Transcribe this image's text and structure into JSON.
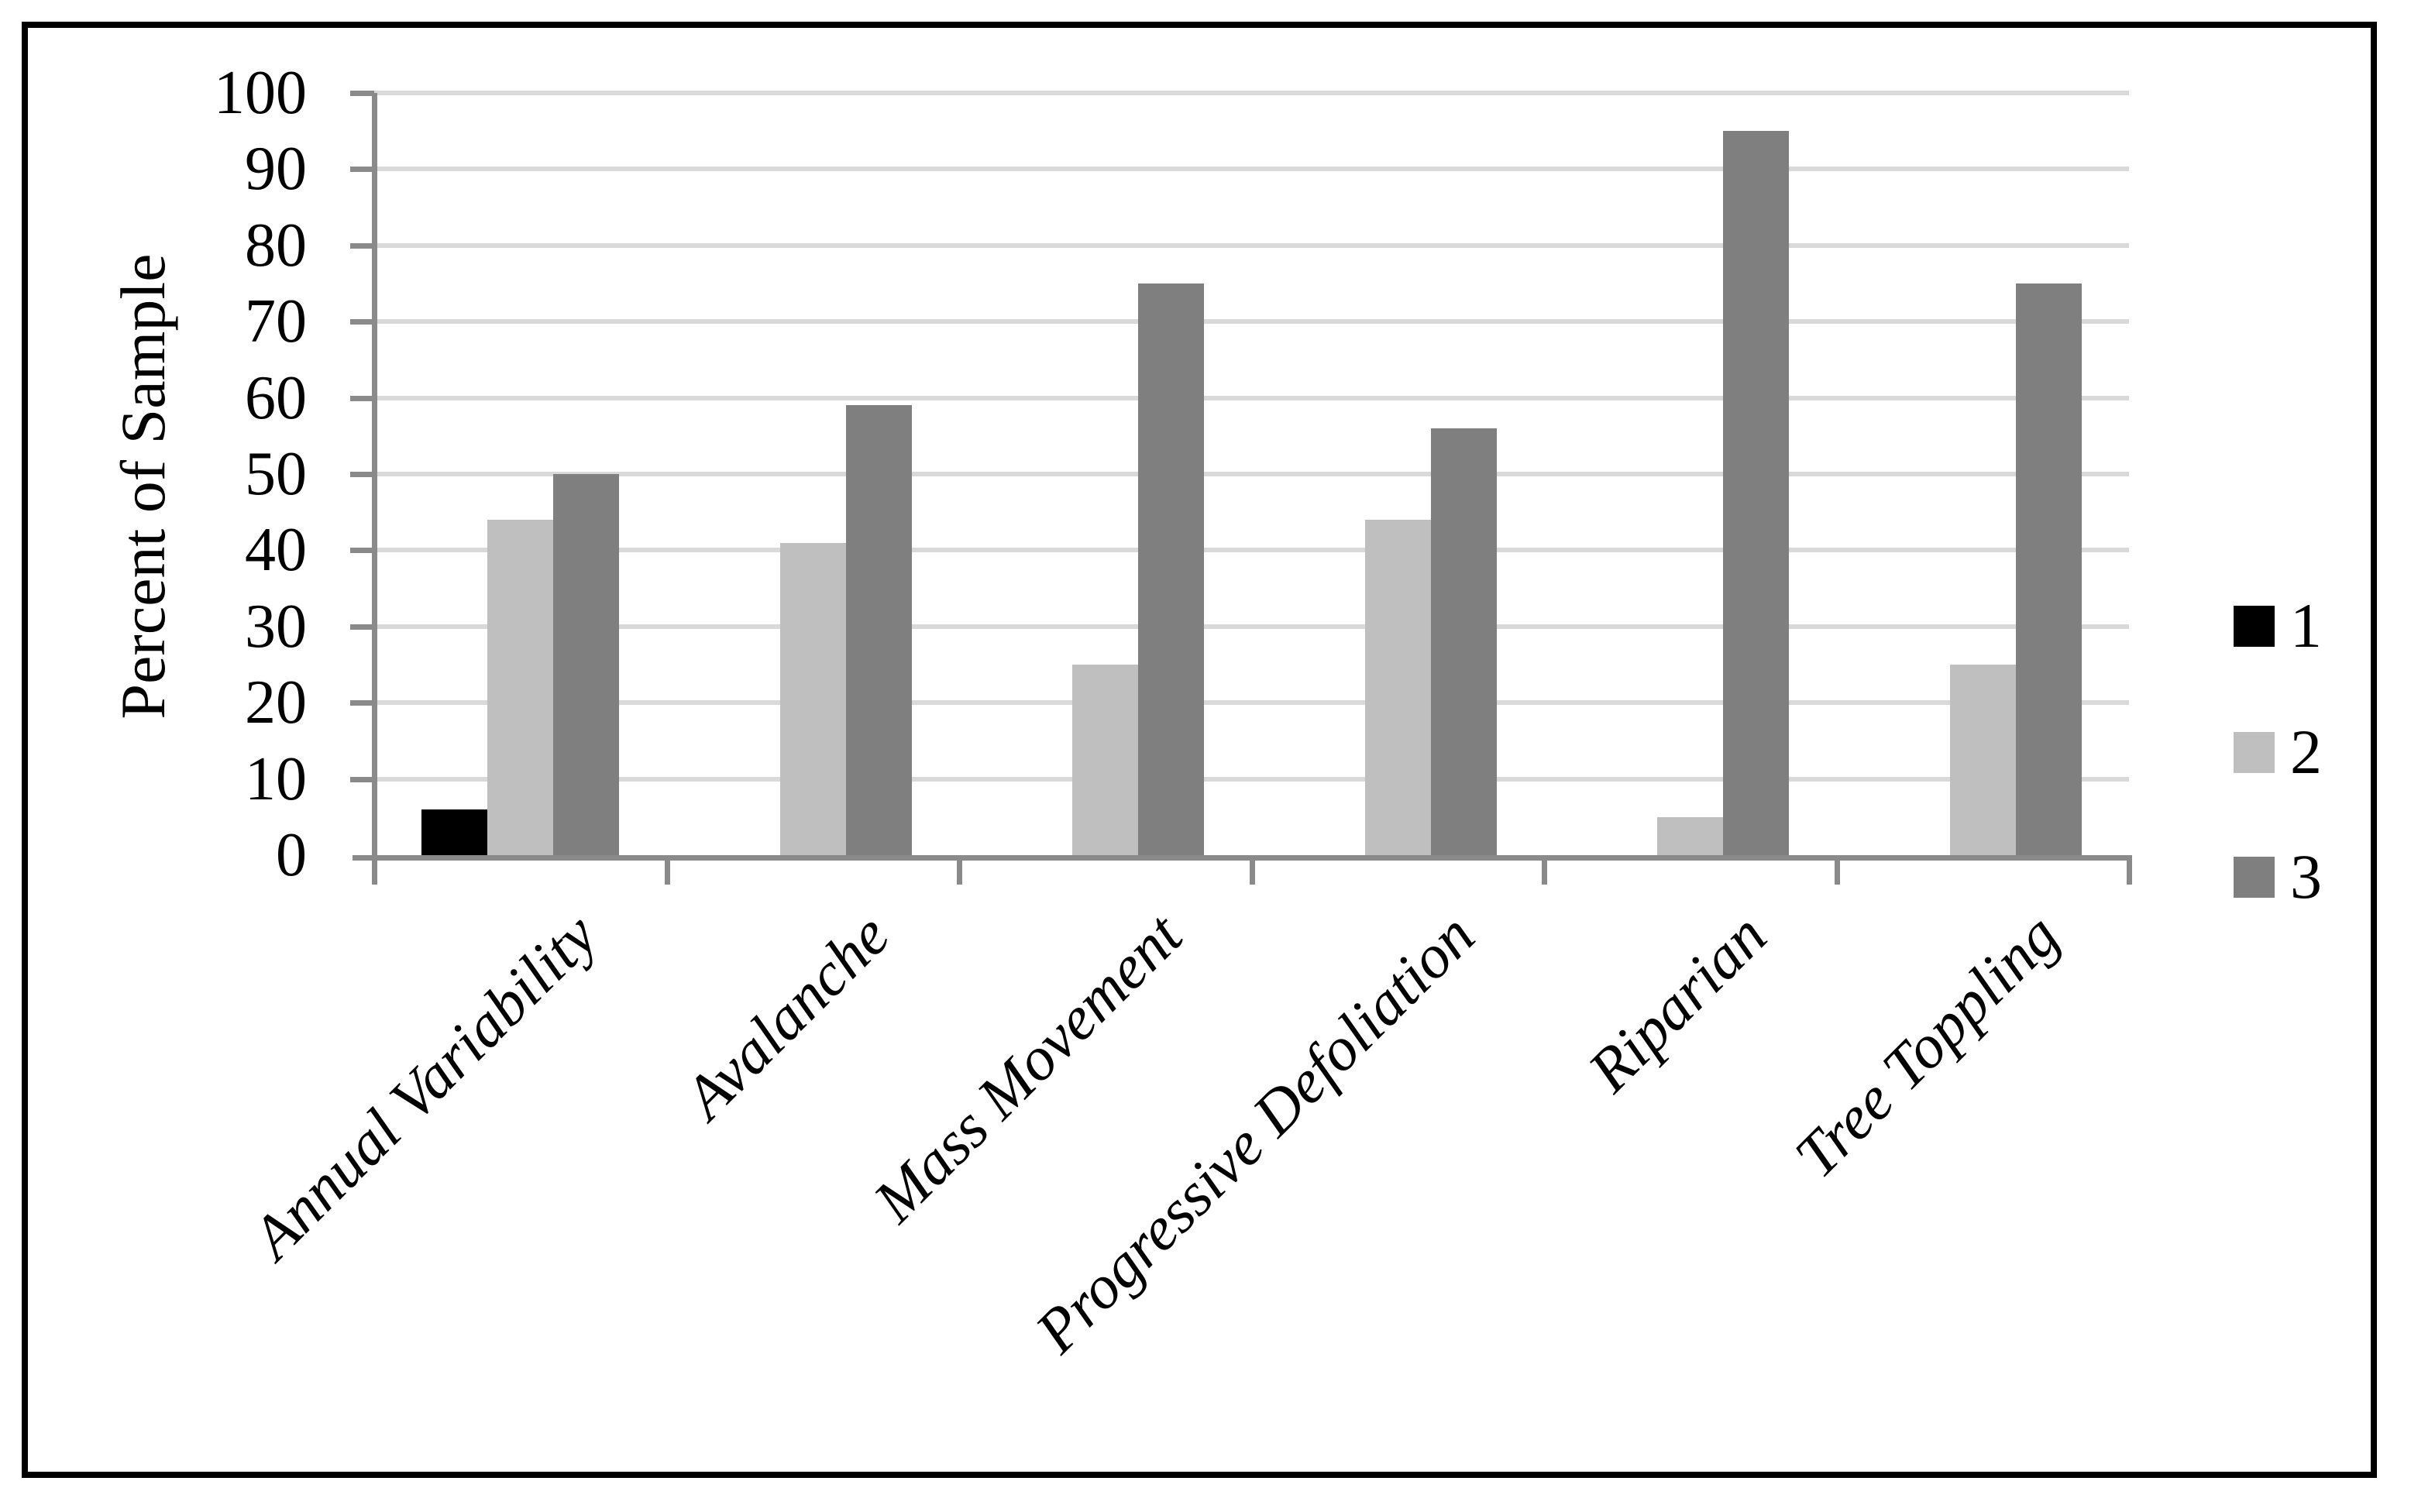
{
  "figure": {
    "background": "#ffffff",
    "border_color": "#000000",
    "y_axis_title": "Percent of Sample"
  },
  "colors": {
    "gridline": "#d9d9d9",
    "axis": "#8a8a8a",
    "text": "#000000"
  },
  "chart_data": {
    "type": "bar",
    "title": "",
    "xlabel": "",
    "ylabel": "Percent of Sample",
    "ylim": [
      0,
      100
    ],
    "ytick_step": 10,
    "grid": true,
    "legend_position": "right",
    "categories": [
      "Annual Variability",
      "Avalanche",
      "Mass Movement",
      "Progressive Defoliation",
      "Riparian",
      "Tree Toppling"
    ],
    "series": [
      {
        "name": "1",
        "color": "#000000",
        "values": [
          6,
          0,
          0,
          0,
          0,
          0
        ]
      },
      {
        "name": "2",
        "color": "#bfbfbf",
        "values": [
          44,
          41,
          25,
          44,
          5,
          25
        ]
      },
      {
        "name": "3",
        "color": "#7f7f7f",
        "values": [
          50,
          59,
          75,
          56,
          95,
          75
        ]
      }
    ],
    "legend": [
      {
        "label": "1",
        "color": "#000000"
      },
      {
        "label": "2",
        "color": "#bfbfbf"
      },
      {
        "label": "3",
        "color": "#7f7f7f"
      }
    ]
  }
}
